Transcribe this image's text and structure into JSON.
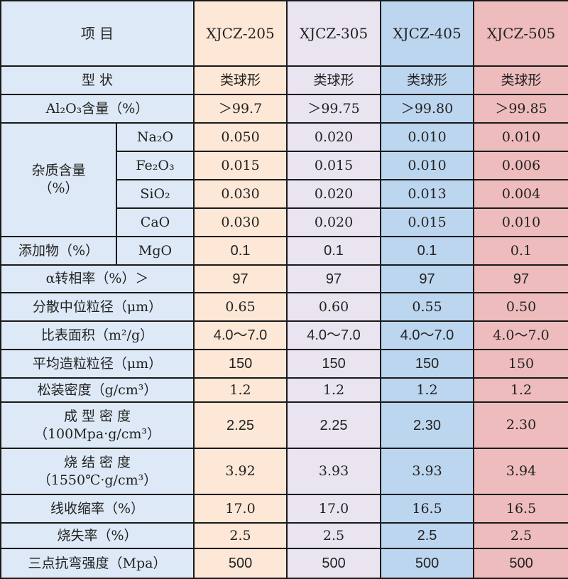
{
  "header": {
    "item_label": "项 目",
    "products": [
      "XJCZ-205",
      "XJCZ-305",
      "XJCZ-405",
      "XJCZ-505"
    ]
  },
  "colors": {
    "label_bg": "#dde9f6",
    "product_bg": [
      "#fde7d6",
      "#e9e4ef",
      "#bdd6ef",
      "#eebcbc"
    ]
  },
  "rows": [
    {
      "label": "型 状",
      "values": [
        "类球形",
        "类球形",
        "类球形",
        "类球形"
      ]
    },
    {
      "label": "Al₂O₃含量（%）",
      "values": [
        "＞99.7",
        "＞99.75",
        "＞99.80",
        "＞99.85"
      ]
    },
    {
      "group": "杂质含量（%）",
      "label": "Na₂O",
      "values": [
        "0.050",
        "0.020",
        "0.010",
        "0.010"
      ]
    },
    {
      "label": "Fe₂O₃",
      "values": [
        "0.015",
        "0.015",
        "0.010",
        "0.006"
      ]
    },
    {
      "label": "SiO₂",
      "values": [
        "0.030",
        "0.020",
        "0.013",
        "0.004"
      ]
    },
    {
      "label": "CaO",
      "values": [
        "0.030",
        "0.020",
        "0.015",
        "0.010"
      ]
    },
    {
      "group": "添加物（%）",
      "label": "MgO",
      "values": [
        "0.1",
        "0.1",
        "0.1",
        "0.1"
      ]
    },
    {
      "label": "α转相率（%）＞",
      "values": [
        "97",
        "97",
        "97",
        "97"
      ]
    },
    {
      "label": "分散中位粒径（μm）",
      "values": [
        "0.65",
        "0.60",
        "0.55",
        "0.50"
      ]
    },
    {
      "label": "比表面积（m²/g）",
      "values": [
        "4.0～7.0",
        "4.0～7.0",
        "4.0～7.0",
        "4.0～7.0"
      ]
    },
    {
      "label": "平均造粒粒径（μm）",
      "values": [
        "150",
        "150",
        "150",
        "150"
      ]
    },
    {
      "label": "松装密度（g/cm³）",
      "values": [
        "1.2",
        "1.2",
        "1.2",
        "1.2"
      ]
    },
    {
      "label": "成 型 密 度",
      "label2": "（100Mpa·g/cm³）",
      "values": [
        "2.25",
        "2.25",
        "2.30",
        "2.30"
      ]
    },
    {
      "label": "烧 结 密 度",
      "label2": "（1550℃·g/cm³）",
      "values": [
        "3.92",
        "3.93",
        "3.93",
        "3.94"
      ]
    },
    {
      "label": "线收缩率（%）",
      "values": [
        "17.0",
        "17.0",
        "16.5",
        "16.5"
      ]
    },
    {
      "label": "烧失率（%）",
      "values": [
        "2.5",
        "2.5",
        "2.5",
        "2.5"
      ]
    },
    {
      "label": "三点抗弯强度（Mpa）",
      "values": [
        "500",
        "500",
        "500",
        "500"
      ]
    }
  ]
}
